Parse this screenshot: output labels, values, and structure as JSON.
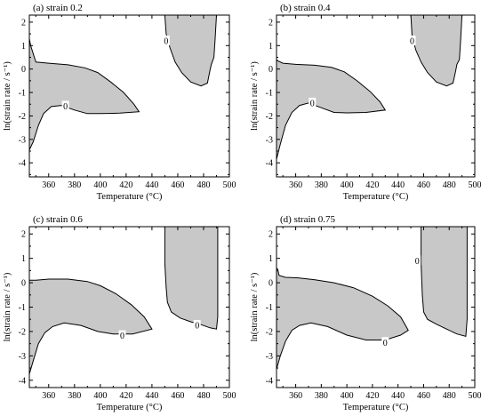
{
  "chart_data": [
    {
      "type": "contour",
      "panel_label": "(a) strain 0.2",
      "xlabel": "Temperature (°C)",
      "ylabel": "ln(strain rate / s⁻¹)",
      "xlim": [
        345,
        500
      ],
      "ylim": [
        -4.6,
        2.3
      ],
      "x_ticks": [
        360,
        380,
        400,
        420,
        440,
        460,
        480,
        500
      ],
      "y_ticks": [
        -4,
        -3,
        -2,
        -1,
        0,
        1,
        2
      ],
      "fill_color": "#c8c8c8",
      "regions": [
        {
          "name": "low-temperature-region",
          "points": [
            [
              345,
              -3.45
            ],
            [
              348,
              -3.1
            ],
            [
              352,
              -2.4
            ],
            [
              356,
              -1.9
            ],
            [
              362,
              -1.6
            ],
            [
              370,
              -1.55
            ],
            [
              380,
              -1.75
            ],
            [
              390,
              -1.9
            ],
            [
              400,
              -1.9
            ],
            [
              415,
              -1.88
            ],
            [
              430,
              -1.82
            ],
            [
              426,
              -1.5
            ],
            [
              418,
              -1.0
            ],
            [
              408,
              -0.55
            ],
            [
              398,
              -0.15
            ],
            [
              388,
              0.05
            ],
            [
              375,
              0.18
            ],
            [
              360,
              0.25
            ],
            [
              350,
              0.3
            ],
            [
              346,
              1.0
            ],
            [
              345,
              1.3
            ]
          ]
        },
        {
          "name": "high-temperature-region",
          "points": [
            [
              450,
              2.3
            ],
            [
              451,
              1.5
            ],
            [
              454,
              0.9
            ],
            [
              458,
              0.3
            ],
            [
              463,
              -0.15
            ],
            [
              470,
              -0.55
            ],
            [
              478,
              -0.72
            ],
            [
              483,
              -0.6
            ],
            [
              485,
              -0.05
            ],
            [
              486,
              0.2
            ],
            [
              488,
              0.5
            ],
            [
              489,
              1.3
            ],
            [
              490,
              2.3
            ]
          ]
        }
      ],
      "contour_labels": [
        {
          "text": "0",
          "x": 373,
          "y": -1.58
        },
        {
          "text": "0",
          "x": 451,
          "y": 1.2
        }
      ]
    },
    {
      "type": "contour",
      "panel_label": "(b) strain 0.4",
      "xlabel": "Temperature (°C)",
      "ylabel": "ln(strain rate / s⁻¹)",
      "xlim": [
        345,
        500
      ],
      "ylim": [
        -4.6,
        2.3
      ],
      "x_ticks": [
        360,
        380,
        400,
        420,
        440,
        460,
        480,
        500
      ],
      "y_ticks": [
        -4,
        -3,
        -2,
        -1,
        0,
        1,
        2
      ],
      "fill_color": "#c8c8c8",
      "regions": [
        {
          "name": "low-temperature-region",
          "points": [
            [
              345,
              -3.85
            ],
            [
              348,
              -3.2
            ],
            [
              352,
              -2.4
            ],
            [
              357,
              -1.85
            ],
            [
              363,
              -1.55
            ],
            [
              370,
              -1.45
            ],
            [
              380,
              -1.65
            ],
            [
              390,
              -1.85
            ],
            [
              400,
              -1.87
            ],
            [
              415,
              -1.85
            ],
            [
              430,
              -1.75
            ],
            [
              426,
              -1.4
            ],
            [
              418,
              -0.95
            ],
            [
              408,
              -0.5
            ],
            [
              398,
              -0.12
            ],
            [
              388,
              0.07
            ],
            [
              375,
              0.16
            ],
            [
              360,
              0.2
            ],
            [
              350,
              0.25
            ],
            [
              346,
              0.35
            ],
            [
              345,
              0.4
            ]
          ]
        },
        {
          "name": "high-temperature-region",
          "points": [
            [
              450,
              2.3
            ],
            [
              451,
              1.4
            ],
            [
              454,
              0.8
            ],
            [
              458,
              0.3
            ],
            [
              463,
              -0.15
            ],
            [
              470,
              -0.55
            ],
            [
              478,
              -0.72
            ],
            [
              483,
              -0.6
            ],
            [
              485,
              -0.1
            ],
            [
              486,
              0.2
            ],
            [
              488,
              0.4
            ],
            [
              489,
              1.3
            ],
            [
              490,
              2.3
            ]
          ]
        }
      ],
      "contour_labels": [
        {
          "text": "0",
          "x": 373,
          "y": -1.45
        },
        {
          "text": "0",
          "x": 451,
          "y": 1.2
        }
      ]
    },
    {
      "type": "contour",
      "panel_label": "(c) strain 0.6",
      "xlabel": "Temperature (°C)",
      "ylabel": "ln(strain rate / s⁻¹)",
      "xlim": [
        345,
        500
      ],
      "ylim": [
        -4.3,
        2.3
      ],
      "x_ticks": [
        360,
        380,
        400,
        420,
        440,
        460,
        480,
        500
      ],
      "y_ticks": [
        -4,
        -3,
        -2,
        -1,
        0,
        1,
        2
      ],
      "fill_color": "#c8c8c8",
      "regions": [
        {
          "name": "low-temperature-region",
          "points": [
            [
              345,
              -3.75
            ],
            [
              348,
              -3.2
            ],
            [
              352,
              -2.5
            ],
            [
              357,
              -2.05
            ],
            [
              363,
              -1.8
            ],
            [
              372,
              -1.65
            ],
            [
              385,
              -1.75
            ],
            [
              398,
              -2.0
            ],
            [
              410,
              -2.1
            ],
            [
              425,
              -2.1
            ],
            [
              440,
              -1.9
            ],
            [
              434,
              -1.4
            ],
            [
              424,
              -0.9
            ],
            [
              412,
              -0.45
            ],
            [
              400,
              -0.12
            ],
            [
              390,
              0.05
            ],
            [
              375,
              0.15
            ],
            [
              360,
              0.15
            ],
            [
              350,
              0.1
            ],
            [
              345,
              0.1
            ]
          ]
        },
        {
          "name": "high-temperature-region",
          "points": [
            [
              450,
              2.3
            ],
            [
              450,
              0.8
            ],
            [
              451,
              -0.2
            ],
            [
              452,
              -0.8
            ],
            [
              455,
              -1.2
            ],
            [
              462,
              -1.45
            ],
            [
              470,
              -1.6
            ],
            [
              478,
              -1.72
            ],
            [
              485,
              -1.85
            ],
            [
              490,
              -1.9
            ],
            [
              491,
              -1.4
            ],
            [
              491,
              0.5
            ],
            [
              491,
              2.3
            ]
          ]
        }
      ],
      "contour_labels": [
        {
          "text": "0",
          "x": 417,
          "y": -2.17
        },
        {
          "text": "0",
          "x": 475,
          "y": -1.75
        }
      ]
    },
    {
      "type": "contour",
      "panel_label": "(d) strain 0.75",
      "xlabel": "Temperature (°C)",
      "ylabel": "ln(strain rate / s⁻¹)",
      "xlim": [
        345,
        500
      ],
      "ylim": [
        -4.3,
        2.3
      ],
      "x_ticks": [
        360,
        380,
        400,
        420,
        440,
        460,
        480,
        500
      ],
      "y_ticks": [
        -4,
        -3,
        -2,
        -1,
        0,
        1,
        2
      ],
      "fill_color": "#c8c8c8",
      "regions": [
        {
          "name": "low-temperature-region",
          "points": [
            [
              345,
              -3.55
            ],
            [
              348,
              -3.0
            ],
            [
              352,
              -2.4
            ],
            [
              357,
              -1.95
            ],
            [
              363,
              -1.75
            ],
            [
              372,
              -1.65
            ],
            [
              385,
              -1.8
            ],
            [
              400,
              -2.15
            ],
            [
              415,
              -2.35
            ],
            [
              430,
              -2.35
            ],
            [
              442,
              -2.15
            ],
            [
              448,
              -1.95
            ],
            [
              442,
              -1.4
            ],
            [
              432,
              -0.95
            ],
            [
              420,
              -0.55
            ],
            [
              405,
              -0.2
            ],
            [
              390,
              0.0
            ],
            [
              375,
              0.12
            ],
            [
              362,
              0.2
            ],
            [
              352,
              0.22
            ],
            [
              347,
              0.3
            ],
            [
              346,
              0.55
            ],
            [
              345,
              0.6
            ]
          ]
        },
        {
          "name": "high-temperature-region",
          "points": [
            [
              458,
              2.3
            ],
            [
              458,
              0.8
            ],
            [
              459,
              -0.5
            ],
            [
              460,
              -1.2
            ],
            [
              463,
              -1.5
            ],
            [
              470,
              -1.7
            ],
            [
              478,
              -1.9
            ],
            [
              486,
              -2.1
            ],
            [
              493,
              -2.2
            ],
            [
              494,
              -1.5
            ],
            [
              494,
              0.5
            ],
            [
              494,
              2.3
            ]
          ]
        }
      ],
      "contour_labels": [
        {
          "text": "0",
          "x": 430,
          "y": -2.45
        },
        {
          "text": "0",
          "x": 455,
          "y": 0.9
        }
      ]
    }
  ]
}
